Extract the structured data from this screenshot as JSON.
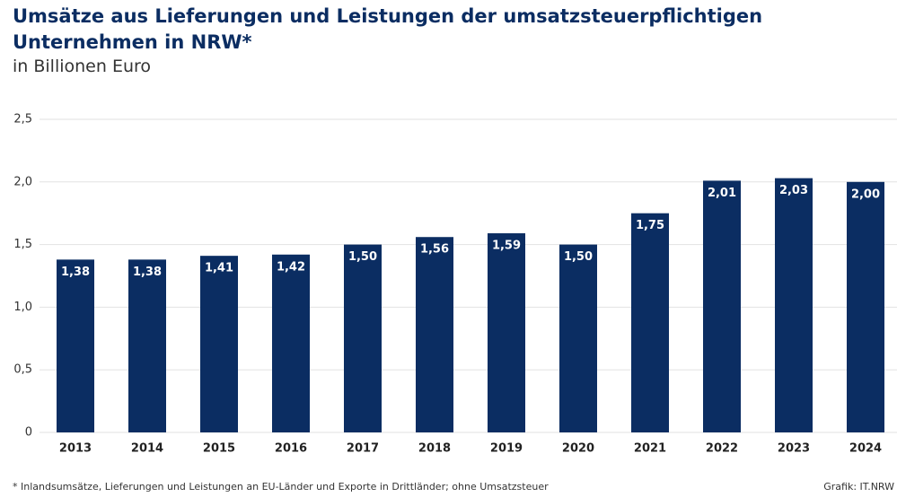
{
  "chart_data": {
    "type": "bar",
    "title": "Umsätze aus Lieferungen und Leistungen der umsatzsteuerpflichtigen Unternehmen in NRW*",
    "subtitle": "in Billionen Euro",
    "categories": [
      "2013",
      "2014",
      "2015",
      "2016",
      "2017",
      "2018",
      "2019",
      "2020",
      "2021",
      "2022",
      "2023",
      "2024"
    ],
    "values": [
      1.38,
      1.38,
      1.41,
      1.42,
      1.5,
      1.56,
      1.59,
      1.5,
      1.75,
      2.01,
      2.03,
      2.0
    ],
    "value_labels": [
      "1,38",
      "1,38",
      "1,41",
      "1,42",
      "1,50",
      "1,56",
      "1,59",
      "1,50",
      "1,75",
      "2,01",
      "2,03",
      "2,00"
    ],
    "color": "#0b2d62",
    "ylim": [
      0,
      2.5
    ],
    "yticks": [
      0,
      {
        "value": 0.5,
        "label": "0,5"
      },
      {
        "value": 1,
        "label": "1,0"
      },
      {
        "value": 1.5,
        "label": "1,5"
      },
      {
        "value": 2,
        "label": "2,0"
      },
      {
        "value": 2.5,
        "label": "2,5"
      }
    ],
    "grid": true,
    "footnote": "*  Inlandsumsätze, Lieferungen und Leistungen an EU-Länder und Exporte in Drittländer; ohne Umsatzsteuer",
    "source": "Grafik: IT.NRW"
  }
}
